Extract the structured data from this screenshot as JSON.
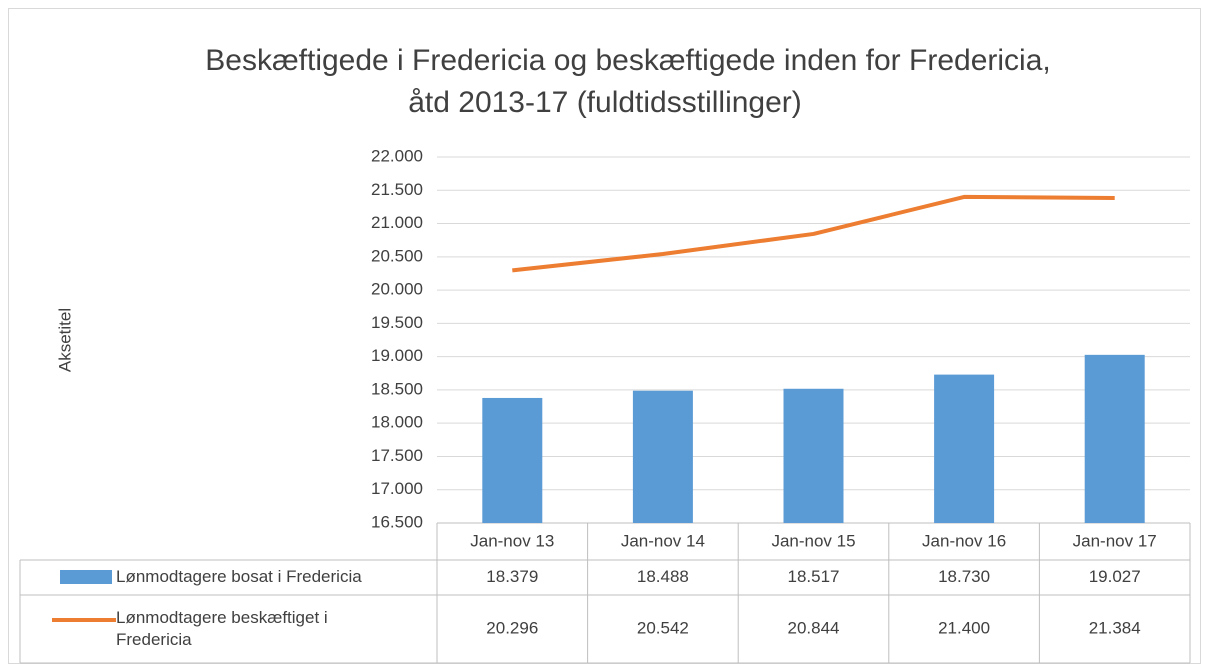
{
  "chart_data": {
    "type": "bar-line",
    "title": [
      "Beskæftigede i Fredericia og beskæftigede inden for Fredericia,",
      "åtd 2013-17 (fuldtidsstillinger)"
    ],
    "ylabel": "Aksetitel",
    "categories": [
      "Jan-nov 13",
      "Jan-nov 14",
      "Jan-nov 15",
      "Jan-nov 16",
      "Jan-nov 17"
    ],
    "series": [
      {
        "name": "Lønmodtagere bosat i Fredericia",
        "type": "bar",
        "color": "#5b9bd5",
        "values": [
          18379,
          18488,
          18517,
          18730,
          19027
        ],
        "value_labels": [
          "18.379",
          "18.488",
          "18.517",
          "18.730",
          "19.027"
        ]
      },
      {
        "name": "Lønmodtagere beskæftiget i Fredericia",
        "type": "line",
        "color": "#ed7d31",
        "values": [
          20296,
          20542,
          20844,
          21400,
          21384
        ],
        "value_labels": [
          "20.296",
          "20.542",
          "20.844",
          "21.400",
          "21.384"
        ]
      }
    ],
    "ylim": [
      16500,
      22000
    ],
    "yticks": [
      {
        "value": 16500,
        "label": "16.500"
      },
      {
        "value": 17000,
        "label": "17.000"
      },
      {
        "value": 17500,
        "label": "17.500"
      },
      {
        "value": 18000,
        "label": "18.000"
      },
      {
        "value": 18500,
        "label": "18.500"
      },
      {
        "value": 19000,
        "label": "19.000"
      },
      {
        "value": 19500,
        "label": "19.500"
      },
      {
        "value": 20000,
        "label": "20.000"
      },
      {
        "value": 20500,
        "label": "20.500"
      },
      {
        "value": 21000,
        "label": "21.000"
      },
      {
        "value": 21500,
        "label": "21.500"
      },
      {
        "value": 22000,
        "label": "22.000"
      }
    ],
    "grid": true
  }
}
